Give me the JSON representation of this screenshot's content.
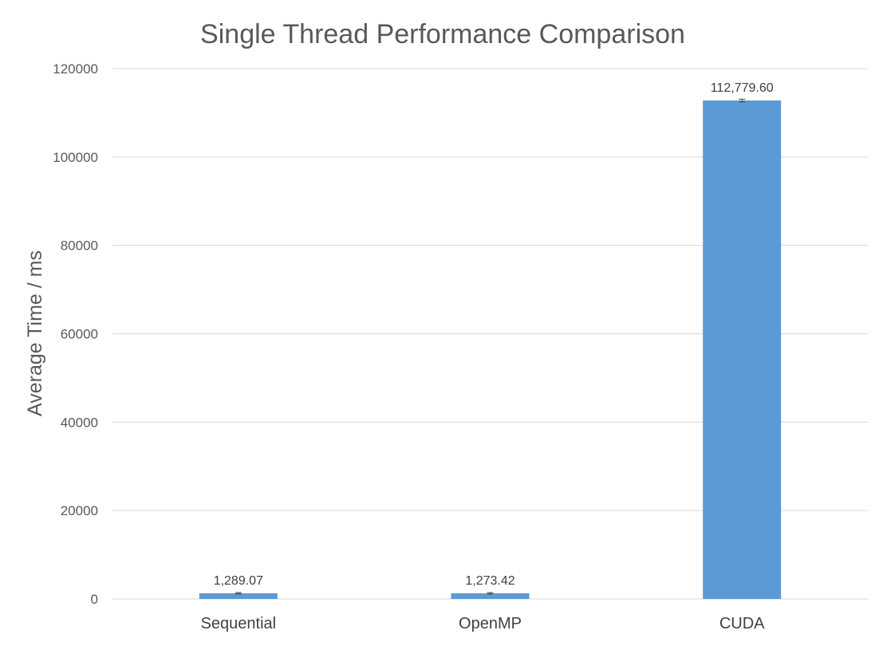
{
  "chart_data": {
    "type": "bar",
    "title": "Single Thread Performance Comparison",
    "xlabel": "",
    "ylabel": "Average Time / ms",
    "categories": [
      "Sequential",
      "OpenMP",
      "CUDA"
    ],
    "values": [
      1289.07,
      1273.42,
      112779.6
    ],
    "data_labels": [
      "1,289.07",
      "1,273.42",
      "112,779.60"
    ],
    "error_bars": [
      150,
      150,
      300
    ],
    "ylim": [
      0,
      120000
    ],
    "yticks": [
      0,
      20000,
      40000,
      60000,
      80000,
      100000,
      120000
    ],
    "ytick_labels": [
      "0",
      "20000",
      "40000",
      "60000",
      "80000",
      "100000",
      "120000"
    ],
    "grid": true,
    "legend": "none",
    "colors": {
      "bar": "#5b9bd5",
      "grid": "#d9d9d9",
      "text": "#595959"
    }
  }
}
